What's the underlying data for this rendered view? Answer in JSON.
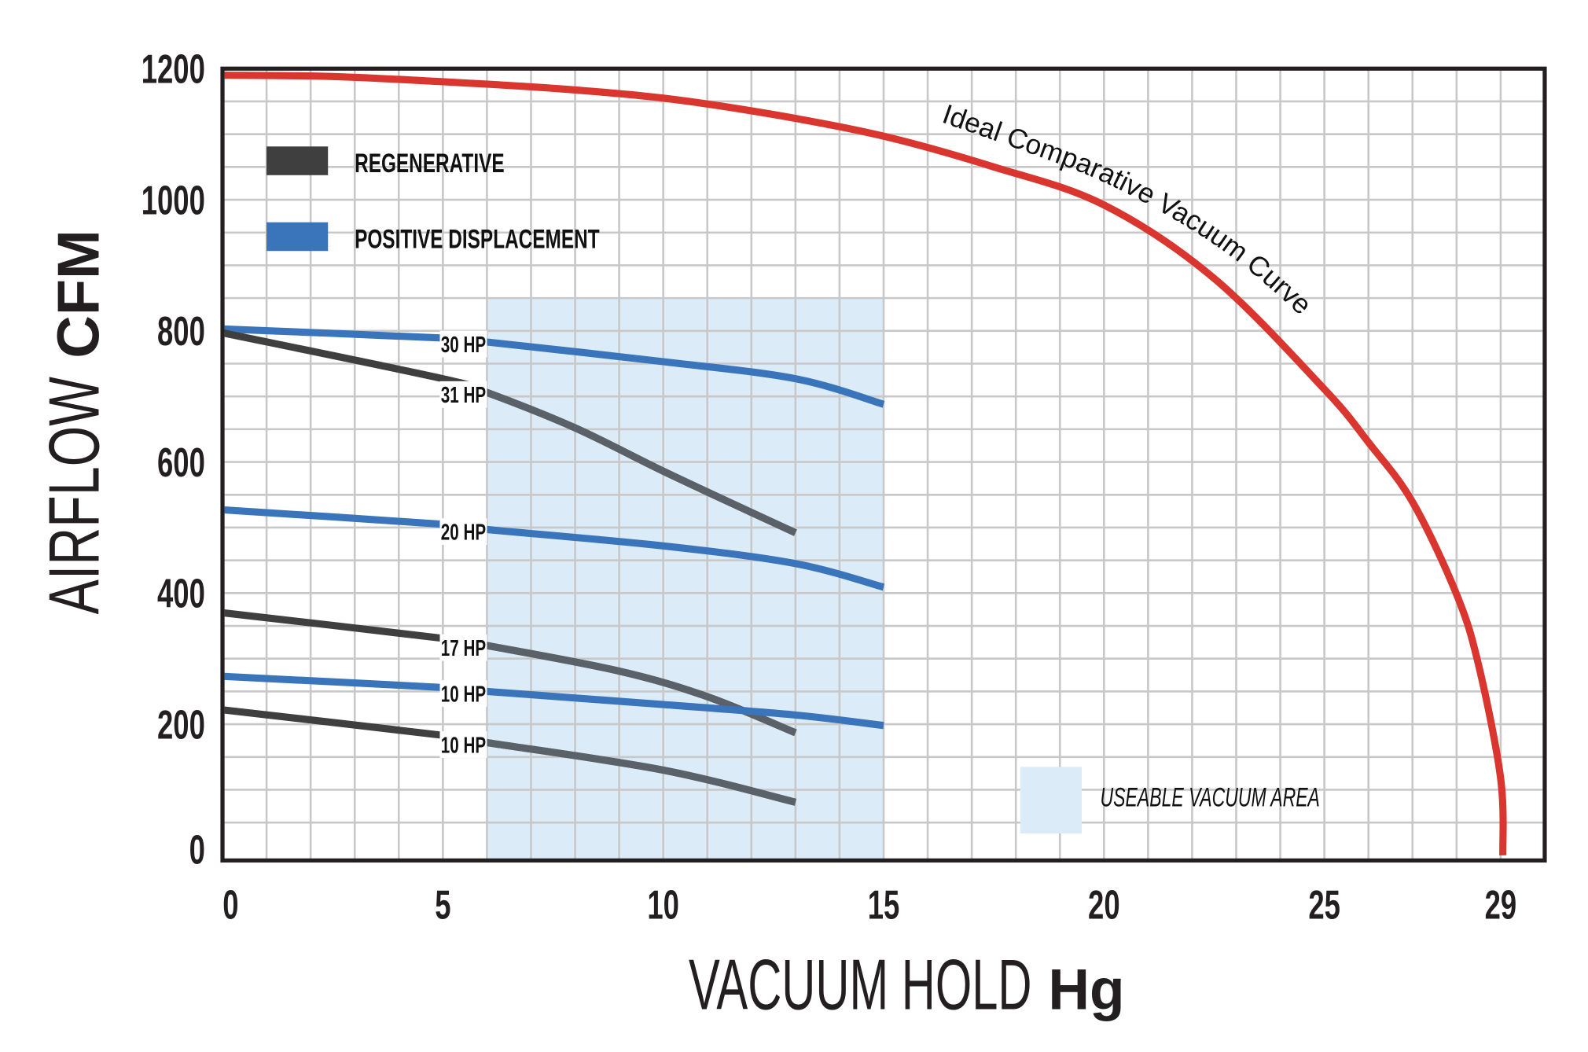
{
  "chart_data": {
    "type": "line",
    "title": "",
    "xlabel": "VACUUM HOLD",
    "xlabel_unit": "Hg",
    "ylabel": "AIRFLOW",
    "ylabel_unit": "CFM",
    "xlim": [
      0,
      30
    ],
    "ylim": [
      -10,
      1200
    ],
    "x_ticks": [
      0,
      5,
      10,
      15,
      20,
      25,
      29
    ],
    "y_ticks": [
      0,
      200,
      400,
      600,
      800,
      1000,
      1200
    ],
    "grid": true,
    "grid_minor_x_step": 1,
    "grid_minor_y_step": 50,
    "legend_placement": "top-left",
    "legend": [
      {
        "label": "REGENERATIVE",
        "color": "#3f3f3f"
      },
      {
        "label": "POSITIVE DISPLACEMENT",
        "color": "#3a75bb"
      }
    ],
    "usable_area": {
      "label": "USEABLE VACUUM AREA",
      "x_range": [
        6,
        15
      ],
      "y_range": [
        0,
        850
      ],
      "color": "#dbebf7"
    },
    "ideal_curve": {
      "label": "Ideal Comparative Vacuum Curve",
      "color": "#d9362f",
      "x": [
        0,
        2.5,
        5,
        7.5,
        10,
        12.5,
        15,
        17.5,
        20,
        22.5,
        25,
        26,
        27,
        28,
        28.5,
        29,
        29.05
      ],
      "y": [
        1190,
        1188,
        1180,
        1170,
        1155,
        1130,
        1097,
        1050,
        992,
        880,
        711,
        630,
        539,
        398,
        290,
        117,
        0
      ]
    },
    "series": [
      {
        "name": "30 HP",
        "type": "POSITIVE DISPLACEMENT",
        "color": "#3a75bb",
        "x": [
          0,
          5,
          6,
          10,
          13,
          15
        ],
        "y": [
          803,
          789,
          783,
          753,
          727,
          688
        ]
      },
      {
        "name": "31 HP",
        "type": "REGENERATIVE",
        "color": "#3f3f3f",
        "x": [
          0,
          5,
          6,
          8,
          10,
          12,
          13
        ],
        "y": [
          797,
          727,
          706,
          652,
          586,
          523,
          492
        ]
      },
      {
        "name": "20 HP",
        "type": "POSITIVE DISPLACEMENT",
        "color": "#3a75bb",
        "x": [
          0,
          5,
          6,
          10,
          13,
          15
        ],
        "y": [
          527,
          505,
          497,
          472,
          445,
          409
        ]
      },
      {
        "name": "17 HP",
        "type": "REGENERATIVE",
        "color": "#3f3f3f",
        "x": [
          0,
          5,
          6,
          9,
          11,
          13
        ],
        "y": [
          370,
          331,
          320,
          281,
          242,
          187
        ]
      },
      {
        "name": "10 HP",
        "type": "POSITIVE DISPLACEMENT",
        "color": "#3a75bb",
        "x": [
          0,
          5,
          6,
          10,
          13,
          15
        ],
        "y": [
          273,
          256,
          250,
          230,
          214,
          198
        ]
      },
      {
        "name": "10 HP",
        "type": "REGENERATIVE",
        "color": "#3f3f3f",
        "x": [
          0,
          5,
          6,
          10,
          13
        ],
        "y": [
          222,
          183,
          172,
          130,
          81
        ]
      }
    ]
  }
}
